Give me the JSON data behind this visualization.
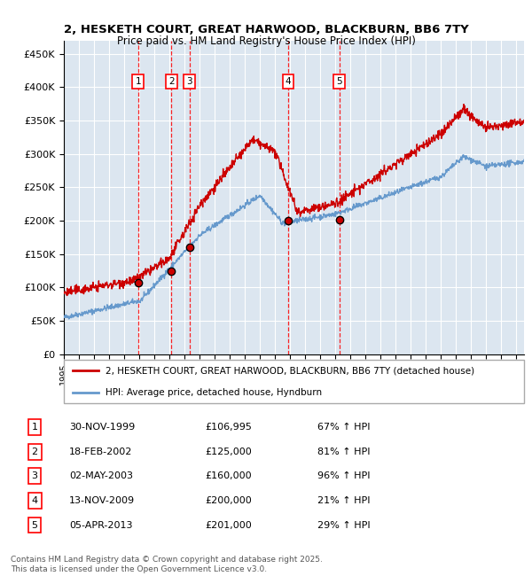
{
  "title_line1": "2, HESKETH COURT, GREAT HARWOOD, BLACKBURN, BB6 7TY",
  "title_line2": "Price paid vs. HM Land Registry's House Price Index (HPI)",
  "ylabel_ticks": [
    "£0",
    "£50K",
    "£100K",
    "£150K",
    "£200K",
    "£250K",
    "£300K",
    "£350K",
    "£400K",
    "£450K"
  ],
  "ytick_values": [
    0,
    50000,
    100000,
    150000,
    200000,
    250000,
    300000,
    350000,
    400000,
    450000
  ],
  "ylim": [
    0,
    470000
  ],
  "xlim_start": 1995.0,
  "xlim_end": 2025.5,
  "plot_bg_color": "#dce6f0",
  "red_line_color": "#cc0000",
  "blue_line_color": "#6699cc",
  "sale_points": [
    {
      "num": 1,
      "year": 1999.92,
      "price": 106995
    },
    {
      "num": 2,
      "year": 2002.12,
      "price": 125000
    },
    {
      "num": 3,
      "year": 2003.33,
      "price": 160000
    },
    {
      "num": 4,
      "year": 2009.87,
      "price": 200000
    },
    {
      "num": 5,
      "year": 2013.25,
      "price": 201000
    }
  ],
  "legend_entries": [
    "2, HESKETH COURT, GREAT HARWOOD, BLACKBURN, BB6 7TY (detached house)",
    "HPI: Average price, detached house, Hyndburn"
  ],
  "table_rows": [
    {
      "num": 1,
      "date": "30-NOV-1999",
      "price": "£106,995",
      "pct": "67% ↑ HPI"
    },
    {
      "num": 2,
      "date": "18-FEB-2002",
      "price": "£125,000",
      "pct": "81% ↑ HPI"
    },
    {
      "num": 3,
      "date": "02-MAY-2003",
      "price": "£160,000",
      "pct": "96% ↑ HPI"
    },
    {
      "num": 4,
      "date": "13-NOV-2009",
      "price": "£200,000",
      "pct": "21% ↑ HPI"
    },
    {
      "num": 5,
      "date": "05-APR-2013",
      "price": "£201,000",
      "pct": "29% ↑ HPI"
    }
  ],
  "footnote": "Contains HM Land Registry data © Crown copyright and database right 2025.\nThis data is licensed under the Open Government Licence v3.0."
}
